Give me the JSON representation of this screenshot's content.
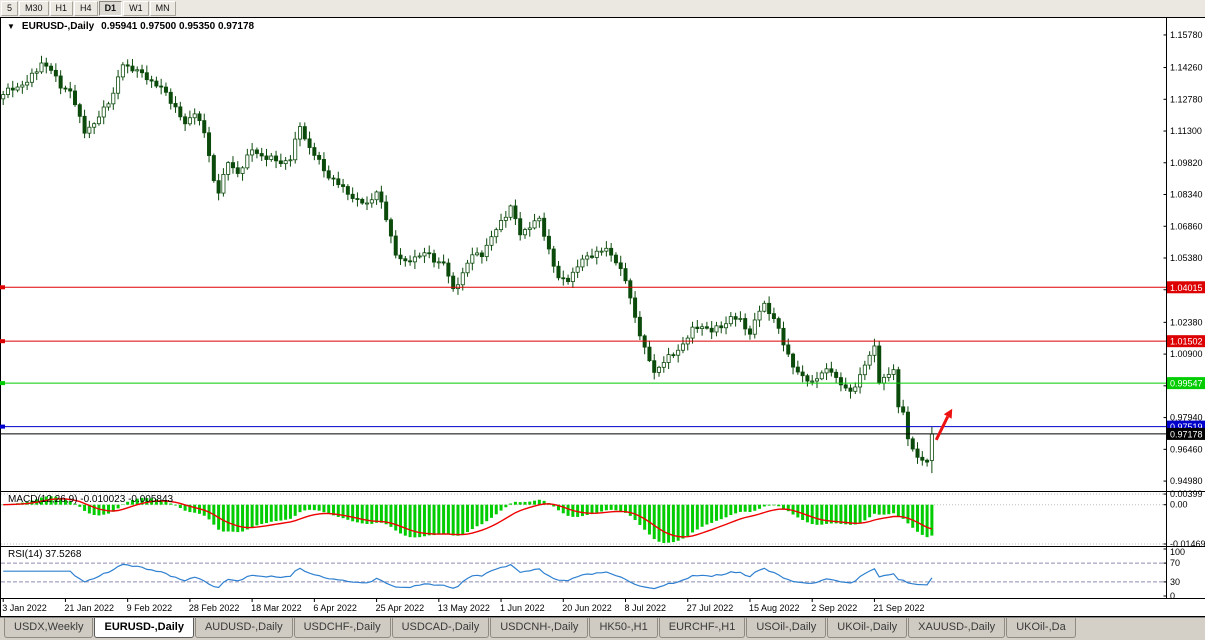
{
  "toolbar": {
    "periods": [
      {
        "label": "5",
        "active": false
      },
      {
        "label": "M30",
        "active": false
      },
      {
        "label": "H1",
        "active": false
      },
      {
        "label": "H4",
        "active": false
      },
      {
        "label": "D1",
        "active": true
      },
      {
        "label": "W1",
        "active": false
      },
      {
        "label": "MN",
        "active": false
      }
    ]
  },
  "header": {
    "dropdown_icon": "▼",
    "title": "EURUSD-,Daily",
    "ohlc": "0.95941 0.97500 0.95350 0.97178"
  },
  "chart_data": {
    "type": "candlestick",
    "symbol": "EURUSD-",
    "timeframe": "Daily",
    "title": "EURUSD-,Daily",
    "current_bar": {
      "open": 0.95941,
      "high": 0.975,
      "low": 0.9535,
      "close": 0.97178
    },
    "bars_count": 195,
    "price_axis": {
      "min": 0.9475,
      "max": 1.1629,
      "ticks": [
        "1.15780",
        "1.14260",
        "1.12780",
        "1.11300",
        "1.09820",
        "1.08340",
        "1.06860",
        "1.05380",
        "1.03900",
        "1.02380",
        "1.00900",
        "0.99420",
        "0.97940",
        "0.96460",
        "0.94980"
      ]
    },
    "time_axis": {
      "bars_per_label": 13,
      "labels": [
        "3 Jan 2022",
        "21 Jan 2022",
        "9 Feb 2022",
        "28 Feb 2022",
        "18 Mar 2022",
        "6 Apr 2022",
        "25 Apr 2022",
        "13 May 2022",
        "1 Jun 2022",
        "20 Jun 2022",
        "8 Jul 2022",
        "27 Jul 2022",
        "15 Aug 2022",
        "2 Sep 2022",
        "21 Sep 2022"
      ]
    },
    "price_path_anchors": [
      [
        0,
        1.13
      ],
      [
        2,
        1.133
      ],
      [
        5,
        1.1355
      ],
      [
        8,
        1.145
      ],
      [
        10,
        1.141
      ],
      [
        12,
        1.1345
      ],
      [
        14,
        1.131
      ],
      [
        17,
        1.1135
      ],
      [
        19,
        1.1155
      ],
      [
        21,
        1.124
      ],
      [
        23,
        1.13
      ],
      [
        25,
        1.1445
      ],
      [
        27,
        1.142
      ],
      [
        30,
        1.138
      ],
      [
        32,
        1.1345
      ],
      [
        34,
        1.1305
      ],
      [
        36,
        1.124
      ],
      [
        38,
        1.1155
      ],
      [
        40,
        1.1225
      ],
      [
        42,
        1.112
      ],
      [
        44,
        1.09
      ],
      [
        45,
        1.0855
      ],
      [
        47,
        1.098
      ],
      [
        49,
        1.0935
      ],
      [
        52,
        1.104
      ],
      [
        55,
        1.1005
      ],
      [
        58,
        1.0985
      ],
      [
        60,
        1.1
      ],
      [
        62,
        1.1155
      ],
      [
        64,
        1.105
      ],
      [
        66,
        1.0985
      ],
      [
        68,
        1.092
      ],
      [
        70,
        1.088
      ],
      [
        72,
        1.0845
      ],
      [
        74,
        1.08
      ],
      [
        76,
        1.079
      ],
      [
        78,
        1.085
      ],
      [
        80,
        1.072
      ],
      [
        82,
        1.056
      ],
      [
        84,
        1.051
      ],
      [
        86,
        1.0545
      ],
      [
        88,
        1.056
      ],
      [
        90,
        1.053
      ],
      [
        92,
        1.0515
      ],
      [
        94,
        1.0385
      ],
      [
        96,
        1.047
      ],
      [
        98,
        1.055
      ],
      [
        100,
        1.056
      ],
      [
        102,
        1.063
      ],
      [
        104,
        1.071
      ],
      [
        106,
        1.0775
      ],
      [
        108,
        1.065
      ],
      [
        110,
        1.069
      ],
      [
        112,
        1.0715
      ],
      [
        114,
        1.058
      ],
      [
        116,
        1.0435
      ],
      [
        118,
        1.044
      ],
      [
        120,
        1.05
      ],
      [
        122,
        1.0545
      ],
      [
        124,
        1.0565
      ],
      [
        126,
        1.0575
      ],
      [
        128,
        1.053
      ],
      [
        130,
        1.043
      ],
      [
        132,
        1.0265
      ],
      [
        134,
        1.011
      ],
      [
        136,
        1.0005
      ],
      [
        138,
        1.006
      ],
      [
        140,
        1.0085
      ],
      [
        142,
        1.014
      ],
      [
        144,
        1.02
      ],
      [
        146,
        1.0225
      ],
      [
        148,
        1.0195
      ],
      [
        150,
        1.022
      ],
      [
        152,
        1.026
      ],
      [
        154,
        1.0245
      ],
      [
        156,
        1.019
      ],
      [
        158,
        1.029
      ],
      [
        159,
        1.032
      ],
      [
        161,
        1.026
      ],
      [
        163,
        1.0135
      ],
      [
        165,
        1.004
      ],
      [
        167,
        0.9975
      ],
      [
        169,
        0.9965
      ],
      [
        171,
        1.0
      ],
      [
        173,
        1.0015
      ],
      [
        175,
        0.995
      ],
      [
        177,
        0.9905
      ],
      [
        179,
        0.9995
      ],
      [
        181,
        1.008
      ],
      [
        182,
        1.012
      ],
      [
        183,
        0.997
      ],
      [
        185,
        0.999
      ],
      [
        186,
        1.0015
      ],
      [
        187,
        0.984
      ],
      [
        188,
        0.9835
      ],
      [
        189,
        0.969
      ],
      [
        190,
        0.964
      ],
      [
        191,
        0.961
      ],
      [
        192,
        0.9594
      ],
      [
        193,
        0.96
      ],
      [
        194,
        0.9718
      ]
    ],
    "levels": [
      {
        "price": 1.04015,
        "label": "1.04015",
        "color": "#dd0000",
        "current_price": false
      },
      {
        "price": 1.01502,
        "label": "1.01502",
        "color": "#dd0000",
        "current_price": false
      },
      {
        "price": 0.99547,
        "label": "0.99547",
        "color": "#00cc00",
        "current_price": false
      },
      {
        "price": 0.97519,
        "label": "0.97519",
        "color": "#0000cc",
        "current_price": false
      },
      {
        "price": 0.97178,
        "label": "0.97178",
        "color": "#000000",
        "current_price": true
      }
    ],
    "annotations": [
      {
        "type": "up-arrow",
        "color": "#ee1111",
        "bar_index": 197,
        "price_from": 0.969,
        "price_to": 0.9835
      }
    ],
    "candle_colors": {
      "bull_fill": "#ffffff",
      "bear_fill": "#0b4a0b",
      "outline": "#0b4a0b"
    },
    "indicators": [
      {
        "name": "MACD",
        "params": [
          12,
          26,
          9
        ],
        "label": "MACD(12,26,9) -0.010023 -0.005843",
        "main_value": -0.010023,
        "signal_value": -0.005843,
        "axis_ticks": [
          "0.00399",
          "0.00",
          "-0.01469"
        ],
        "range": [
          -0.0147,
          0.004
        ],
        "histogram_color": "#00cc00",
        "signal_color": "#ee0000"
      },
      {
        "name": "RSI",
        "params": [
          14
        ],
        "label": "RSI(14) 37.5268",
        "value": 37.5268,
        "axis_ticks": [
          "100",
          "70",
          "30",
          "0"
        ],
        "levels": [
          70,
          30
        ],
        "range": [
          0,
          100
        ],
        "line_color": "#2f80d0"
      }
    ]
  },
  "tabs": {
    "items": [
      {
        "label": "USDX,Weekly",
        "active": false
      },
      {
        "label": "EURUSD-,Daily",
        "active": true
      },
      {
        "label": "AUDUSD-,Daily",
        "active": false
      },
      {
        "label": "USDCHF-,Daily",
        "active": false
      },
      {
        "label": "USDCAD-,Daily",
        "active": false
      },
      {
        "label": "USDCNH-,Daily",
        "active": false
      },
      {
        "label": "HK50-,H1",
        "active": false
      },
      {
        "label": "EURCHF-,H1",
        "active": false
      },
      {
        "label": "USOil-,Daily",
        "active": false
      },
      {
        "label": "UKOil-,Daily",
        "active": false
      },
      {
        "label": "XAUUSD-,Daily",
        "active": false
      },
      {
        "label": "UKOil-,Da",
        "active": false
      }
    ]
  }
}
